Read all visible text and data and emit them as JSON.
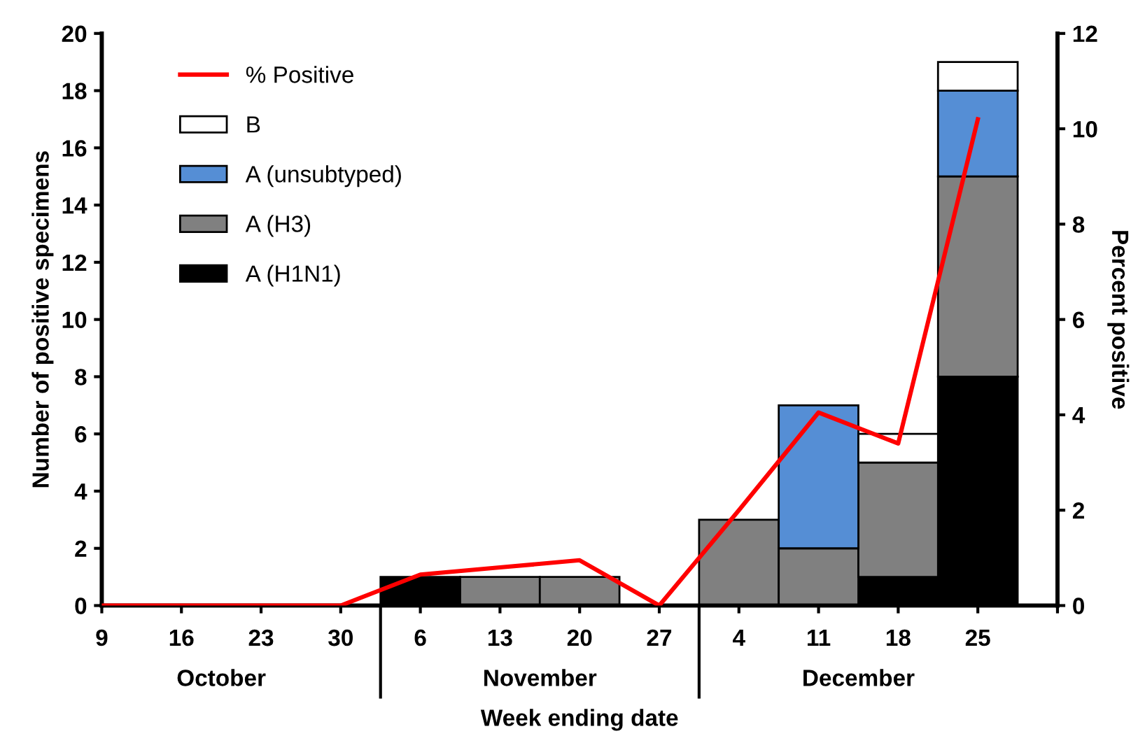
{
  "chart_data": {
    "type": "bar",
    "stacked": true,
    "xlabel": "Week ending date",
    "ylabel": "Number of positive specimens",
    "y2label": "Percent positive",
    "categories": [
      "9",
      "16",
      "23",
      "30",
      "6",
      "13",
      "20",
      "27",
      "4",
      "11",
      "18",
      "25",
      null
    ],
    "series": [
      {
        "name": "A (H1N1)",
        "color": "#000000",
        "values": [
          0,
          0,
          0,
          0,
          1,
          0,
          0,
          0,
          0,
          0,
          1,
          8,
          null
        ]
      },
      {
        "name": "A (H3)",
        "color": "#808080",
        "values": [
          0,
          0,
          0,
          0,
          0,
          1,
          1,
          0,
          3,
          2,
          4,
          7,
          null
        ]
      },
      {
        "name": "A (unsubtyped)",
        "color": "#558ed5",
        "values": [
          0,
          0,
          0,
          0,
          0,
          0,
          0,
          0,
          0,
          5,
          0,
          3,
          null
        ]
      },
      {
        "name": "B",
        "color": "#ffffff",
        "values": [
          0,
          0,
          0,
          0,
          0,
          0,
          0,
          0,
          0,
          0,
          1,
          1,
          null
        ]
      },
      {
        "name": "% Positive",
        "type": "line",
        "axis": "y2",
        "color": "#ff0000",
        "values": [
          0,
          0,
          0,
          0,
          0.65,
          0.8,
          0.95,
          0,
          2.0,
          4.05,
          3.4,
          10.2,
          null
        ]
      }
    ],
    "ylim": [
      0,
      20
    ],
    "yticks": [
      0,
      2,
      4,
      6,
      8,
      10,
      12,
      14,
      16,
      18,
      20
    ],
    "y2lim": [
      0,
      12
    ],
    "y2ticks": [
      0,
      2,
      4,
      6,
      8,
      10,
      12
    ],
    "annotations": [
      "October",
      "November",
      "December"
    ],
    "legend": "top left",
    "grid": false
  }
}
